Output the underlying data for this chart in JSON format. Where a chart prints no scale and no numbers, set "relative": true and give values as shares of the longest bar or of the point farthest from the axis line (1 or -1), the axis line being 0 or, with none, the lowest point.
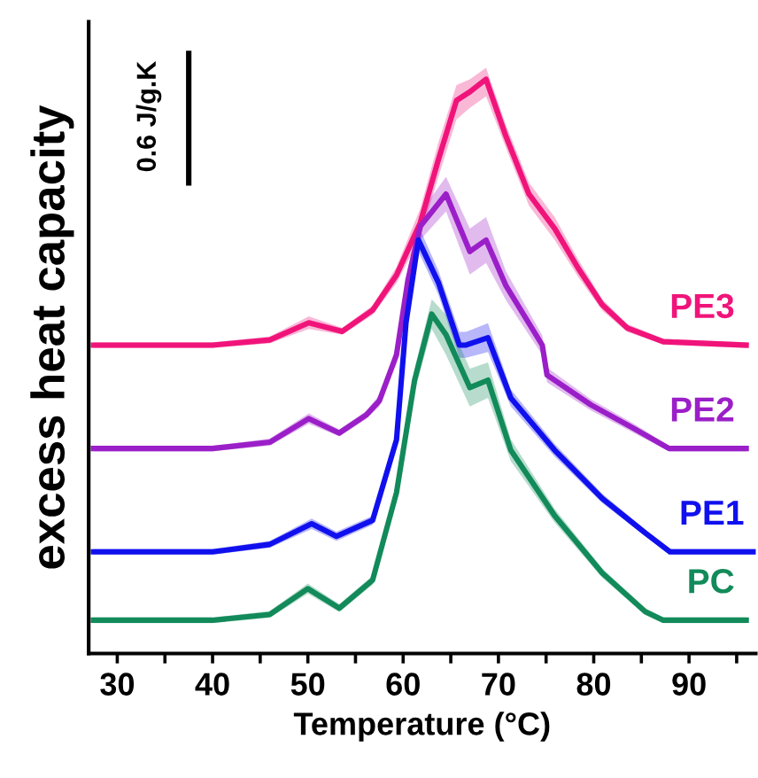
{
  "chart_data": {
    "type": "line",
    "relative": true,
    "xlabel": "Temperature (°C)",
    "ylabel": "excess heat capacity",
    "annotations": [
      "0.6 J/g.K"
    ],
    "xlim": [
      27,
      97
    ],
    "xticks": [
      30,
      {
        "value": 35,
        "label": null
      },
      40,
      {
        "value": 45,
        "label": null
      },
      50,
      {
        "value": 55,
        "label": null
      },
      60,
      {
        "value": 65,
        "label": null
      },
      70,
      {
        "value": 75,
        "label": null
      },
      80,
      {
        "value": 85,
        "label": null
      },
      90,
      {
        "value": 95,
        "label": null
      }
    ],
    "tick_labels": "x",
    "grid": false,
    "legend": false,
    "marker": "none",
    "line_style": "solid",
    "series": [
      {
        "name": "PE3",
        "color": "#f0147a",
        "x": [
          27.5,
          40,
          46,
          50.1,
          53.6,
          56.8,
          59.3,
          61.8,
          63.7,
          65.6,
          67,
          68.7,
          70.8,
          73.2,
          75.9,
          78.4,
          80.9,
          83.5,
          87.3,
          96
        ],
        "values": [
          0.537,
          0.537,
          0.546,
          0.576,
          0.561,
          0.598,
          0.659,
          0.75,
          0.86,
          0.963,
          0.978,
          1.0,
          0.9,
          0.8,
          0.74,
          0.67,
          0.607,
          0.567,
          0.543,
          0.537
        ],
        "lower": [
          0.532,
          0.532,
          0.54,
          0.565,
          0.555,
          0.59,
          0.645,
          0.725,
          0.83,
          0.93,
          0.95,
          0.97,
          0.88,
          0.78,
          0.72,
          0.655,
          0.597,
          0.56,
          0.538,
          0.532
        ],
        "upper": [
          0.542,
          0.542,
          0.552,
          0.587,
          0.567,
          0.606,
          0.673,
          0.775,
          0.89,
          0.99,
          1.0,
          1.02,
          0.92,
          0.82,
          0.76,
          0.685,
          0.617,
          0.574,
          0.548,
          0.542
        ]
      },
      {
        "name": "PE2",
        "color": "#9b1fc8",
        "x": [
          27.5,
          40,
          46,
          50.1,
          53.3,
          56.1,
          57.5,
          59.3,
          60.5,
          61.8,
          64.5,
          67,
          68.7,
          70.8,
          74.6,
          75.1,
          79.7,
          84.1,
          87.9,
          96
        ],
        "values": [
          0.357,
          0.357,
          0.368,
          0.409,
          0.384,
          0.415,
          0.44,
          0.52,
          0.65,
          0.744,
          0.8,
          0.7,
          0.72,
          0.64,
          0.537,
          0.485,
          0.433,
          0.393,
          0.357,
          0.357
        ],
        "lower": [
          0.352,
          0.352,
          0.362,
          0.4,
          0.378,
          0.408,
          0.43,
          0.505,
          0.63,
          0.72,
          0.77,
          0.66,
          0.68,
          0.615,
          0.52,
          0.472,
          0.423,
          0.385,
          0.352,
          0.352
        ],
        "upper": [
          0.362,
          0.362,
          0.374,
          0.418,
          0.39,
          0.422,
          0.45,
          0.535,
          0.67,
          0.768,
          0.83,
          0.74,
          0.76,
          0.665,
          0.554,
          0.498,
          0.443,
          0.401,
          0.362,
          0.362
        ]
      },
      {
        "name": "PE1",
        "color": "#1010ee",
        "x": [
          27.5,
          40,
          46,
          50.4,
          53,
          56.8,
          59.3,
          60.3,
          61.6,
          63.7,
          65.9,
          66.6,
          68.9,
          71.3,
          75.9,
          80.9,
          85.4,
          88,
          97
        ],
        "values": [
          0.177,
          0.177,
          0.19,
          0.226,
          0.204,
          0.232,
          0.372,
          0.576,
          0.72,
          0.646,
          0.537,
          0.537,
          0.55,
          0.445,
          0.354,
          0.27,
          0.21,
          0.177,
          0.177
        ],
        "lower": [
          0.172,
          0.172,
          0.184,
          0.217,
          0.196,
          0.224,
          0.36,
          0.56,
          0.7,
          0.625,
          0.515,
          0.515,
          0.525,
          0.43,
          0.343,
          0.262,
          0.204,
          0.172,
          0.172
        ],
        "upper": [
          0.182,
          0.182,
          0.196,
          0.235,
          0.212,
          0.24,
          0.384,
          0.592,
          0.745,
          0.667,
          0.56,
          0.56,
          0.575,
          0.46,
          0.365,
          0.278,
          0.216,
          0.182,
          0.182
        ]
      },
      {
        "name": "PC",
        "color": "#128a5a",
        "x": [
          27.5,
          40,
          46,
          50,
          53.3,
          56.8,
          59.3,
          61.2,
          63,
          64.5,
          67,
          68.9,
          71.3,
          75.9,
          80.9,
          85.4,
          87.3,
          96
        ],
        "values": [
          0.058,
          0.058,
          0.068,
          0.113,
          0.079,
          0.128,
          0.28,
          0.476,
          0.591,
          0.555,
          0.463,
          0.476,
          0.354,
          0.24,
          0.14,
          0.073,
          0.058,
          0.058
        ],
        "lower": [
          0.053,
          0.053,
          0.062,
          0.104,
          0.072,
          0.12,
          0.265,
          0.455,
          0.565,
          0.52,
          0.43,
          0.445,
          0.335,
          0.228,
          0.132,
          0.067,
          0.053,
          0.053
        ],
        "upper": [
          0.063,
          0.063,
          0.074,
          0.122,
          0.086,
          0.136,
          0.295,
          0.497,
          0.617,
          0.59,
          0.496,
          0.507,
          0.373,
          0.252,
          0.148,
          0.079,
          0.063,
          0.063
        ]
      }
    ]
  }
}
